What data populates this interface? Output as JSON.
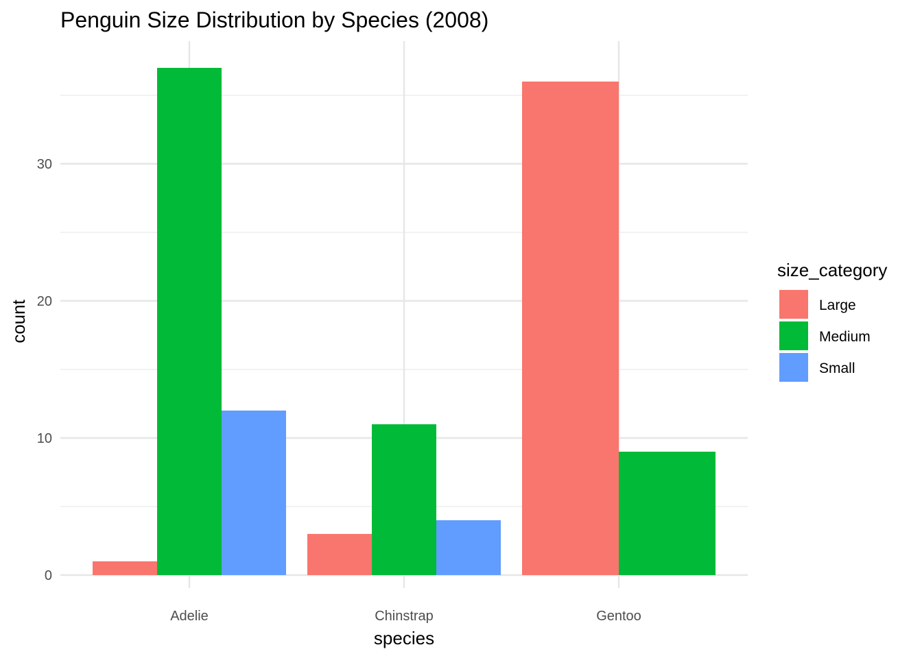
{
  "chart_data": {
    "type": "bar",
    "title": "Penguin Size Distribution by Species (2008)",
    "xlabel": "species",
    "ylabel": "count",
    "categories": [
      "Adelie",
      "Chinstrap",
      "Gentoo"
    ],
    "series": [
      {
        "name": "Large",
        "color": "#F8766D",
        "values": [
          1,
          3,
          36
        ]
      },
      {
        "name": "Medium",
        "color": "#00BA38",
        "values": [
          37,
          11,
          9
        ]
      },
      {
        "name": "Small",
        "color": "#619CFF",
        "values": [
          12,
          4,
          null
        ]
      }
    ],
    "ylim": [
      0,
      38
    ],
    "yticks": [
      0,
      10,
      20,
      30
    ],
    "grid": true,
    "legend": {
      "title": "size_category",
      "position": "right"
    }
  }
}
